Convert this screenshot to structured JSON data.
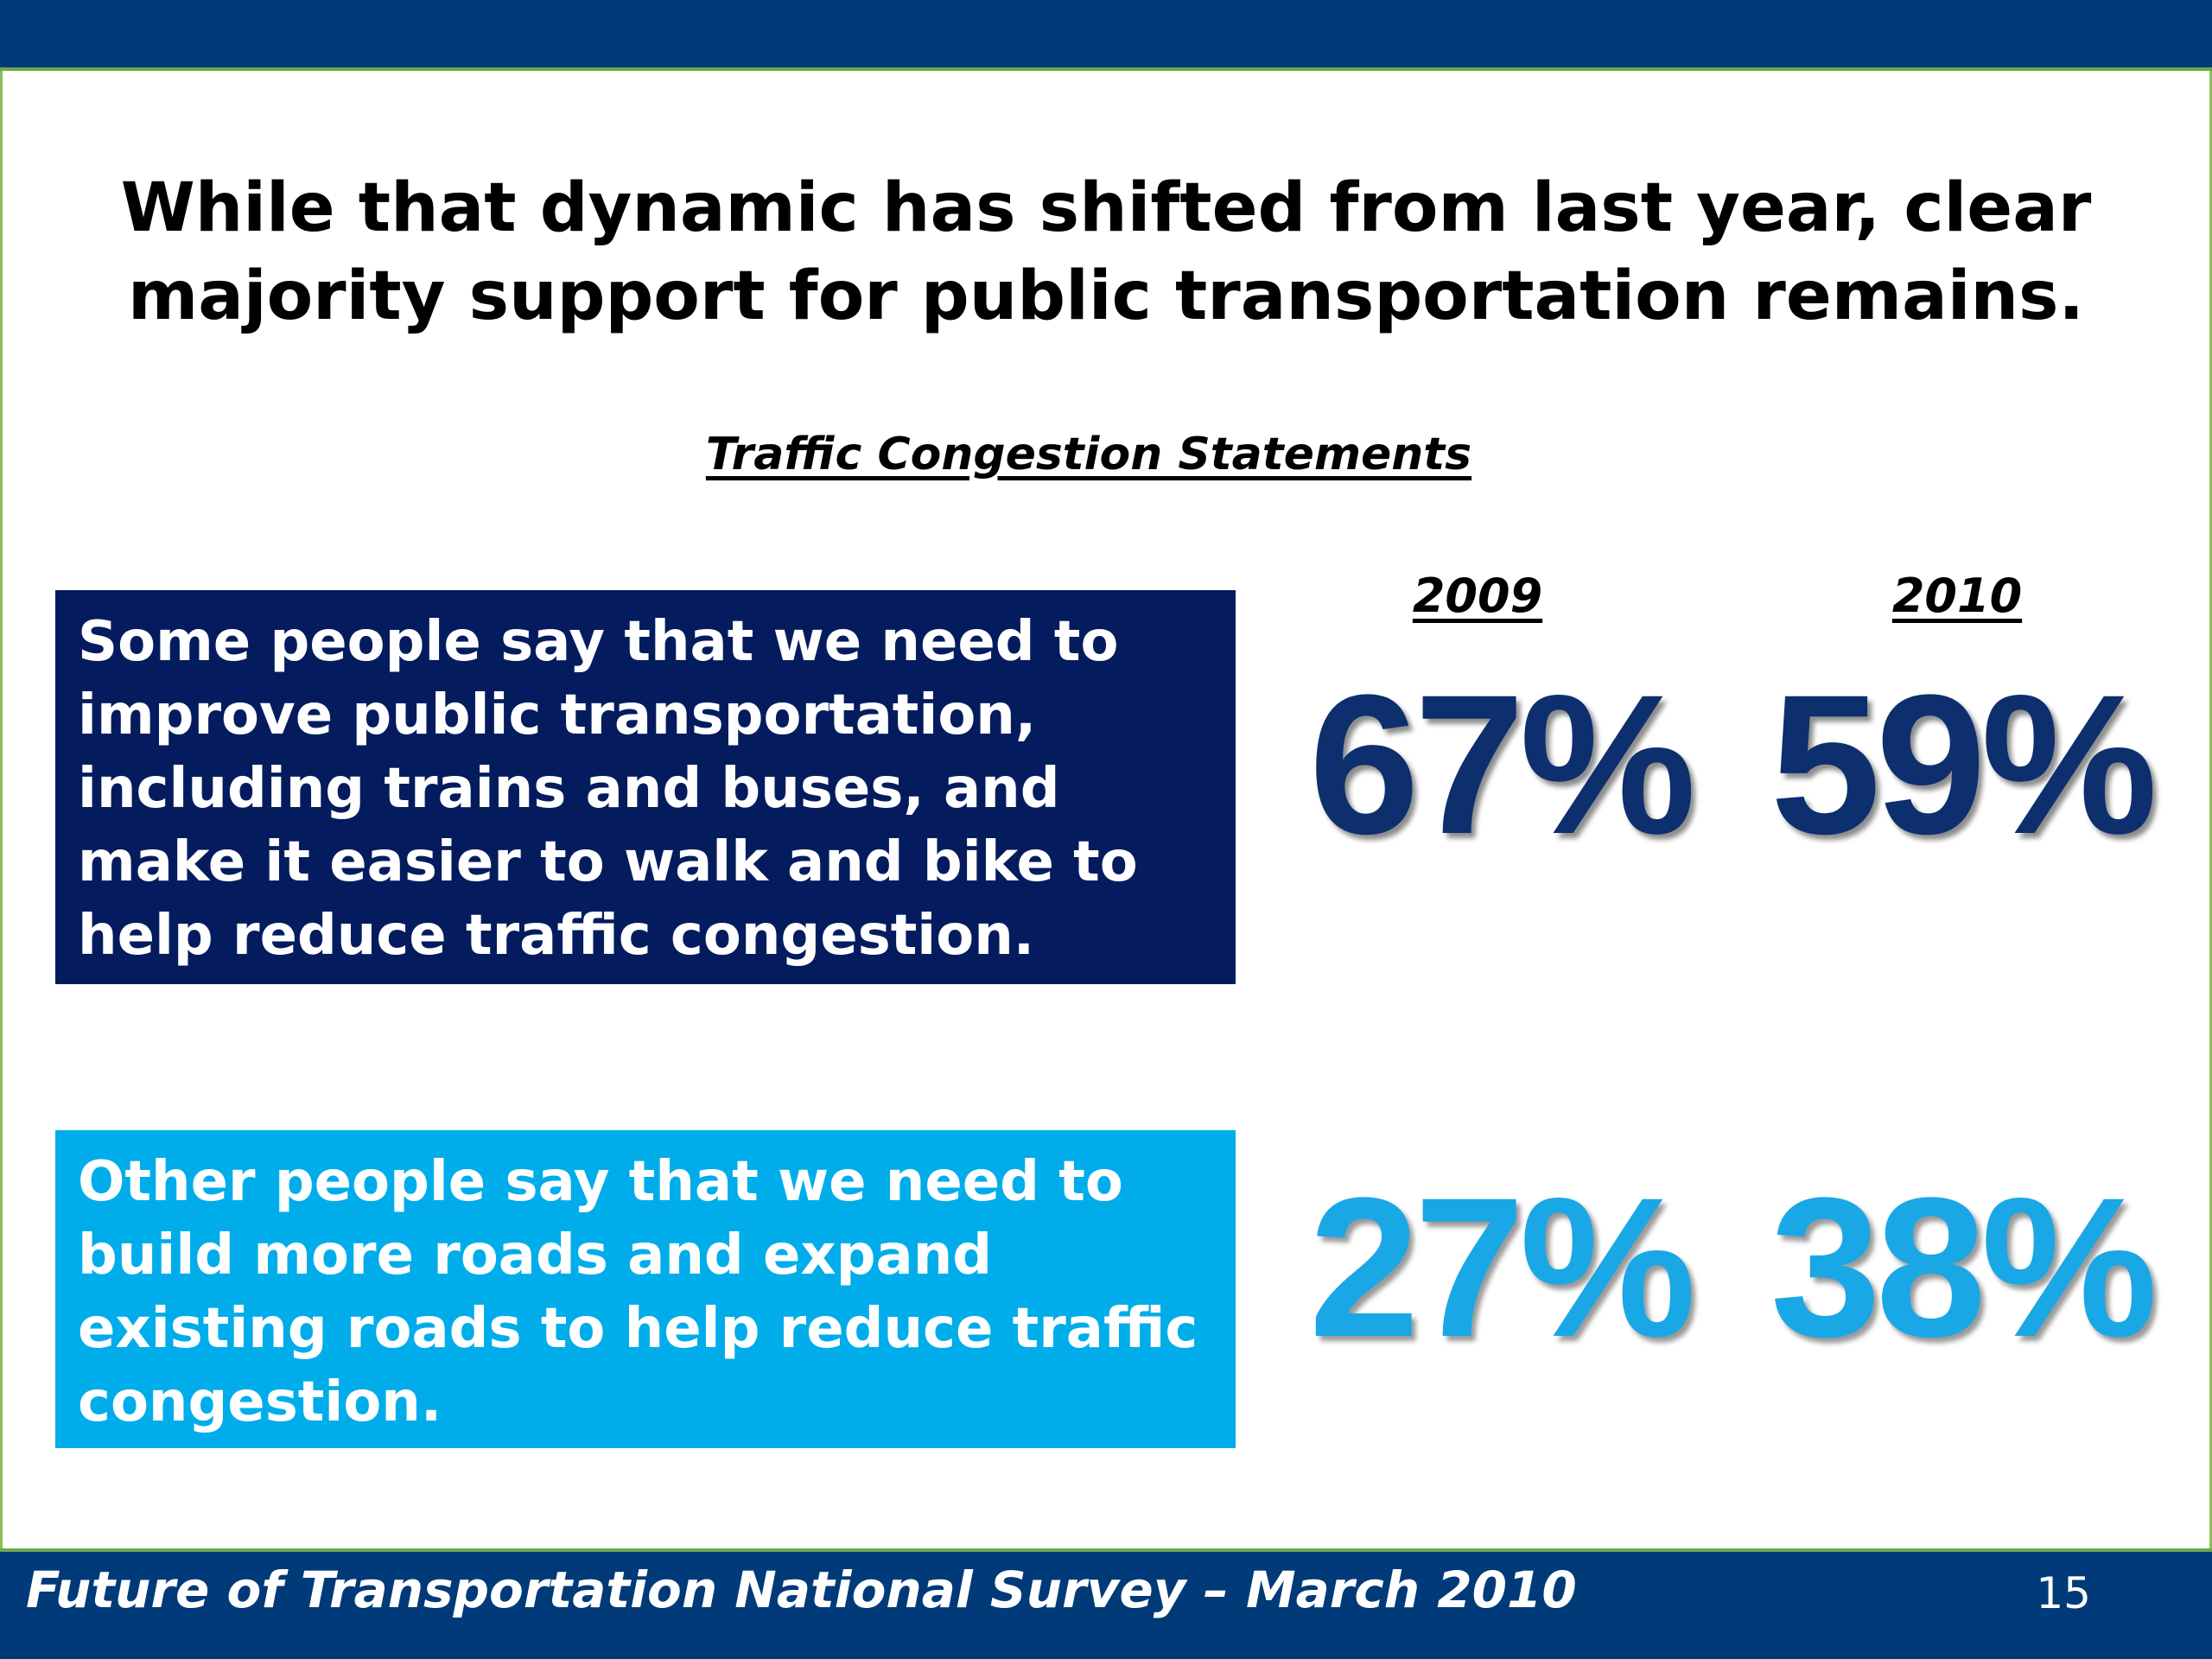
{
  "slide": {
    "headline": "While that dynamic has shifted from last year, clear\nmajority support for public transportation remains.",
    "section_title": "Traffic Congestion Statements",
    "years": [
      "2009",
      "2010"
    ]
  },
  "statements": [
    {
      "text": "Some people say that we need to improve public transportation, including trains and buses, and make it easier to walk and bike to help reduce traffic congestion.",
      "values": [
        "67%",
        "59%"
      ],
      "box_color": "#041c5e",
      "number_color": "#0d2f6e"
    },
    {
      "text": "Other people say that we need to build more roads and expand existing roads to help reduce traffic congestion.",
      "values": [
        "27%",
        "38%"
      ],
      "box_color": "#00adea",
      "number_color": "#1aa7e6"
    }
  ],
  "footer": {
    "text": "Future of Transportation National Survey – March 2010",
    "page_number": "15"
  },
  "colors": {
    "header_bar": "#003a78",
    "accent_border": "#6aa84f"
  }
}
